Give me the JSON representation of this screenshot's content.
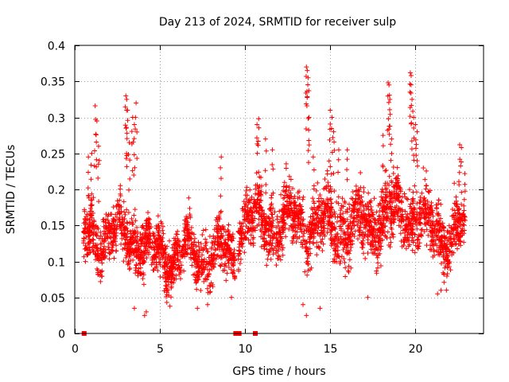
{
  "chart_data": {
    "type": "scatter",
    "title": "Day 213 of 2024, SRMTID for receiver sulp",
    "xlabel": "GPS time / hours",
    "ylabel": "SRMTID / TECUs",
    "xlim": [
      0,
      24
    ],
    "ylim": [
      0,
      0.4
    ],
    "x_ticks": [
      {
        "value": 0,
        "label": "0"
      },
      {
        "value": 5,
        "label": "5"
      },
      {
        "value": 10,
        "label": "10"
      },
      {
        "value": 15,
        "label": "15"
      },
      {
        "value": 20,
        "label": "20"
      }
    ],
    "y_ticks": [
      {
        "value": 0,
        "label": "0"
      },
      {
        "value": 0.05,
        "label": "0.05"
      },
      {
        "value": 0.1,
        "label": "0.1"
      },
      {
        "value": 0.15,
        "label": "0.15"
      },
      {
        "value": 0.2,
        "label": "0.2"
      },
      {
        "value": 0.25,
        "label": "0.25"
      },
      {
        "value": 0.3,
        "label": "0.3"
      },
      {
        "value": 0.35,
        "label": "0.35"
      },
      {
        "value": 0.4,
        "label": "0.4"
      }
    ],
    "grid": true,
    "marker": "plus",
    "color": "#ff0000",
    "series": [
      {
        "name": "SRMTID",
        "bands": [
          {
            "x_start": 0.5,
            "x_end": 4.0,
            "mean": 0.135,
            "spread": 0.045
          },
          {
            "x_start": 4.0,
            "x_end": 9.4,
            "mean": 0.11,
            "spread": 0.04
          },
          {
            "x_start": 9.6,
            "x_end": 13.5,
            "mean": 0.155,
            "spread": 0.045
          },
          {
            "x_start": 13.5,
            "x_end": 17.5,
            "mean": 0.15,
            "spread": 0.05
          },
          {
            "x_start": 17.5,
            "x_end": 20.5,
            "mean": 0.165,
            "spread": 0.05
          },
          {
            "x_start": 20.5,
            "x_end": 22.9,
            "mean": 0.14,
            "spread": 0.045
          }
        ],
        "peaks": [
          {
            "x": 0.8,
            "y": 0.245
          },
          {
            "x": 1.0,
            "y": 0.25
          },
          {
            "x": 1.2,
            "y": 0.316
          },
          {
            "x": 1.3,
            "y": 0.295
          },
          {
            "x": 1.4,
            "y": 0.26
          },
          {
            "x": 3.0,
            "y": 0.33
          },
          {
            "x": 3.05,
            "y": 0.325
          },
          {
            "x": 3.1,
            "y": 0.31
          },
          {
            "x": 3.2,
            "y": 0.265
          },
          {
            "x": 3.4,
            "y": 0.3
          },
          {
            "x": 3.6,
            "y": 0.32
          },
          {
            "x": 3.5,
            "y": 0.29
          },
          {
            "x": 8.6,
            "y": 0.245
          },
          {
            "x": 10.7,
            "y": 0.29
          },
          {
            "x": 10.8,
            "y": 0.298
          },
          {
            "x": 11.2,
            "y": 0.27
          },
          {
            "x": 11.6,
            "y": 0.255
          },
          {
            "x": 13.6,
            "y": 0.37
          },
          {
            "x": 13.65,
            "y": 0.365
          },
          {
            "x": 13.7,
            "y": 0.355
          },
          {
            "x": 13.75,
            "y": 0.3
          },
          {
            "x": 14.0,
            "y": 0.245
          },
          {
            "x": 15.0,
            "y": 0.31
          },
          {
            "x": 15.1,
            "y": 0.3
          },
          {
            "x": 15.2,
            "y": 0.28
          },
          {
            "x": 15.5,
            "y": 0.255
          },
          {
            "x": 16.0,
            "y": 0.255
          },
          {
            "x": 18.1,
            "y": 0.275
          },
          {
            "x": 18.4,
            "y": 0.348
          },
          {
            "x": 18.45,
            "y": 0.345
          },
          {
            "x": 18.5,
            "y": 0.325
          },
          {
            "x": 18.6,
            "y": 0.27
          },
          {
            "x": 19.7,
            "y": 0.362
          },
          {
            "x": 19.75,
            "y": 0.358
          },
          {
            "x": 19.8,
            "y": 0.325
          },
          {
            "x": 19.9,
            "y": 0.3
          },
          {
            "x": 20.0,
            "y": 0.29
          },
          {
            "x": 20.1,
            "y": 0.28
          },
          {
            "x": 22.6,
            "y": 0.262
          },
          {
            "x": 22.7,
            "y": 0.258
          },
          {
            "x": 22.9,
            "y": 0.222
          }
        ],
        "lows": [
          {
            "x": 3.5,
            "y": 0.035
          },
          {
            "x": 4.1,
            "y": 0.025
          },
          {
            "x": 4.2,
            "y": 0.03
          },
          {
            "x": 7.2,
            "y": 0.035
          },
          {
            "x": 7.8,
            "y": 0.04
          },
          {
            "x": 9.2,
            "y": 0.05
          },
          {
            "x": 13.4,
            "y": 0.04
          },
          {
            "x": 13.6,
            "y": 0.025
          },
          {
            "x": 14.4,
            "y": 0.035
          },
          {
            "x": 17.2,
            "y": 0.05
          },
          {
            "x": 21.3,
            "y": 0.055
          },
          {
            "x": 21.5,
            "y": 0.06
          }
        ],
        "zero_markers": [
          {
            "x": 0.55,
            "y": 0
          },
          {
            "x": 9.45,
            "y": 0
          },
          {
            "x": 9.55,
            "y": 0
          },
          {
            "x": 9.65,
            "y": 0
          },
          {
            "x": 10.6,
            "y": 0
          }
        ]
      }
    ]
  }
}
